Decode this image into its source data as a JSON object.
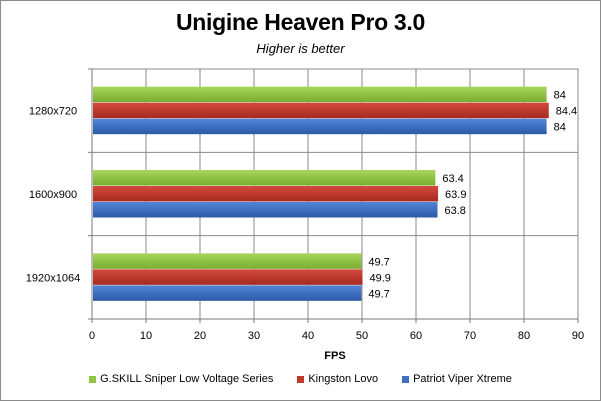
{
  "chart_data": {
    "type": "bar",
    "orientation": "horizontal",
    "title": "Unigine Heaven Pro 3.0",
    "subtitle": "Higher is better",
    "xlabel": "FPS",
    "ylabel": "",
    "xlim": [
      0,
      90
    ],
    "xticks": [
      "0",
      "10",
      "20",
      "30",
      "40",
      "50",
      "60",
      "70",
      "80",
      "90"
    ],
    "grid": true,
    "legend_position": "bottom",
    "categories": [
      "1280x720",
      "1600x900",
      "1920x1064"
    ],
    "series": [
      {
        "name": "G.SKILL Sniper Low Voltage Series",
        "color": "#8dc63f",
        "values": [
          84,
          63.4,
          49.7
        ],
        "labels": [
          "84",
          "63.4",
          "49.7"
        ]
      },
      {
        "name": "Kingston Lovo",
        "color": "#c0392b",
        "values": [
          84.4,
          63.9,
          49.9
        ],
        "labels": [
          "84.4",
          "63.9",
          "49.9"
        ]
      },
      {
        "name": "Patriot Viper Xtreme",
        "color": "#3f6fc3",
        "values": [
          84,
          63.8,
          49.7
        ],
        "labels": [
          "84",
          "63.8",
          "49.7"
        ]
      }
    ]
  }
}
